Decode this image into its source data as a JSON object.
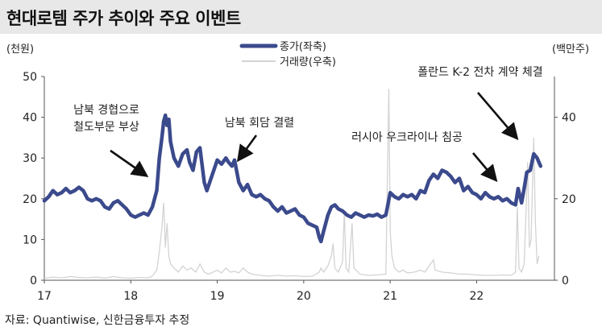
{
  "title": "현대로템 주가 추이와 주요 이벤트",
  "source": "자료: Quantiwise, 신한금융투자 추정",
  "chart_data": {
    "type": "line",
    "x_unit": "year",
    "x_tick_labels": [
      "17",
      "18",
      "19",
      "20",
      "21",
      "22"
    ],
    "xlim": [
      2017.0,
      2022.9
    ],
    "y_left": {
      "label": "(천원)",
      "ylim": [
        0,
        50
      ],
      "ticks": [
        0,
        10,
        20,
        30,
        40,
        50
      ]
    },
    "y_right": {
      "label": "(백만주)",
      "ylim": [
        0,
        50
      ],
      "ticks": [
        0,
        20,
        40
      ]
    },
    "legend": {
      "position": "top-center"
    },
    "grid": false,
    "series": [
      {
        "name": "종가(좌축)",
        "axis": "left",
        "color": "#3b4a8c",
        "points": [
          [
            2017.0,
            19.5
          ],
          [
            2017.05,
            20.5
          ],
          [
            2017.1,
            22.0
          ],
          [
            2017.15,
            21.0
          ],
          [
            2017.2,
            21.5
          ],
          [
            2017.25,
            22.5
          ],
          [
            2017.3,
            21.5
          ],
          [
            2017.35,
            22.0
          ],
          [
            2017.4,
            22.8
          ],
          [
            2017.45,
            22.0
          ],
          [
            2017.5,
            20.0
          ],
          [
            2017.55,
            19.5
          ],
          [
            2017.6,
            20.0
          ],
          [
            2017.65,
            19.5
          ],
          [
            2017.7,
            18.0
          ],
          [
            2017.75,
            17.5
          ],
          [
            2017.8,
            19.0
          ],
          [
            2017.85,
            19.5
          ],
          [
            2017.9,
            18.5
          ],
          [
            2017.95,
            17.5
          ],
          [
            2018.0,
            16.0
          ],
          [
            2018.05,
            15.5
          ],
          [
            2018.1,
            16.0
          ],
          [
            2018.15,
            16.5
          ],
          [
            2018.2,
            16.0
          ],
          [
            2018.25,
            18.0
          ],
          [
            2018.3,
            22.0
          ],
          [
            2018.33,
            30.0
          ],
          [
            2018.36,
            35.0
          ],
          [
            2018.38,
            39.0
          ],
          [
            2018.4,
            40.5
          ],
          [
            2018.42,
            38.0
          ],
          [
            2018.44,
            39.5
          ],
          [
            2018.46,
            34.0
          ],
          [
            2018.5,
            30.0
          ],
          [
            2018.55,
            28.0
          ],
          [
            2018.6,
            31.0
          ],
          [
            2018.65,
            32.0
          ],
          [
            2018.68,
            29.0
          ],
          [
            2018.72,
            27.0
          ],
          [
            2018.76,
            31.5
          ],
          [
            2018.8,
            32.5
          ],
          [
            2018.85,
            24.0
          ],
          [
            2018.88,
            22.0
          ],
          [
            2018.92,
            24.5
          ],
          [
            2018.96,
            27.0
          ],
          [
            2019.0,
            29.5
          ],
          [
            2019.05,
            28.5
          ],
          [
            2019.1,
            30.0
          ],
          [
            2019.13,
            29.0
          ],
          [
            2019.17,
            28.0
          ],
          [
            2019.2,
            29.5
          ],
          [
            2019.25,
            24.0
          ],
          [
            2019.3,
            22.0
          ],
          [
            2019.35,
            23.5
          ],
          [
            2019.4,
            21.0
          ],
          [
            2019.45,
            20.5
          ],
          [
            2019.5,
            21.0
          ],
          [
            2019.55,
            20.0
          ],
          [
            2019.6,
            19.5
          ],
          [
            2019.65,
            18.0
          ],
          [
            2019.7,
            17.0
          ],
          [
            2019.75,
            18.0
          ],
          [
            2019.8,
            16.5
          ],
          [
            2019.85,
            17.0
          ],
          [
            2019.9,
            17.5
          ],
          [
            2019.95,
            16.0
          ],
          [
            2020.0,
            15.5
          ],
          [
            2020.05,
            14.0
          ],
          [
            2020.1,
            13.5
          ],
          [
            2020.15,
            13.0
          ],
          [
            2020.18,
            10.5
          ],
          [
            2020.2,
            9.5
          ],
          [
            2020.23,
            12.0
          ],
          [
            2020.28,
            16.0
          ],
          [
            2020.32,
            18.0
          ],
          [
            2020.36,
            18.5
          ],
          [
            2020.4,
            17.5
          ],
          [
            2020.45,
            17.0
          ],
          [
            2020.5,
            16.0
          ],
          [
            2020.55,
            15.5
          ],
          [
            2020.6,
            16.5
          ],
          [
            2020.65,
            16.0
          ],
          [
            2020.7,
            15.5
          ],
          [
            2020.75,
            16.0
          ],
          [
            2020.8,
            15.8
          ],
          [
            2020.85,
            16.2
          ],
          [
            2020.9,
            15.5
          ],
          [
            2020.95,
            16.0
          ],
          [
            2021.0,
            21.5
          ],
          [
            2021.05,
            20.5
          ],
          [
            2021.1,
            20.0
          ],
          [
            2021.15,
            21.0
          ],
          [
            2021.2,
            20.5
          ],
          [
            2021.25,
            21.0
          ],
          [
            2021.3,
            20.0
          ],
          [
            2021.35,
            22.0
          ],
          [
            2021.4,
            21.5
          ],
          [
            2021.45,
            24.5
          ],
          [
            2021.5,
            26.0
          ],
          [
            2021.55,
            25.0
          ],
          [
            2021.6,
            27.0
          ],
          [
            2021.65,
            26.5
          ],
          [
            2021.7,
            25.5
          ],
          [
            2021.75,
            24.0
          ],
          [
            2021.8,
            25.0
          ],
          [
            2021.85,
            22.0
          ],
          [
            2021.9,
            23.0
          ],
          [
            2021.95,
            21.5
          ],
          [
            2022.0,
            21.0
          ],
          [
            2022.05,
            20.0
          ],
          [
            2022.1,
            21.5
          ],
          [
            2022.15,
            20.5
          ],
          [
            2022.2,
            20.0
          ],
          [
            2022.25,
            20.5
          ],
          [
            2022.3,
            19.5
          ],
          [
            2022.35,
            20.0
          ],
          [
            2022.4,
            19.0
          ],
          [
            2022.45,
            18.5
          ],
          [
            2022.48,
            22.5
          ],
          [
            2022.52,
            19.0
          ],
          [
            2022.55,
            22.5
          ],
          [
            2022.58,
            26.5
          ],
          [
            2022.62,
            27.0
          ],
          [
            2022.66,
            31.0
          ],
          [
            2022.7,
            30.0
          ],
          [
            2022.74,
            28.0
          ]
        ]
      },
      {
        "name": "거래량(우축)",
        "axis": "right",
        "color": "#d3d3d3",
        "points": [
          [
            2017.0,
            0.5
          ],
          [
            2017.1,
            0.8
          ],
          [
            2017.2,
            0.6
          ],
          [
            2017.3,
            0.9
          ],
          [
            2017.4,
            0.7
          ],
          [
            2017.5,
            0.6
          ],
          [
            2017.6,
            0.8
          ],
          [
            2017.7,
            0.5
          ],
          [
            2017.8,
            0.9
          ],
          [
            2017.9,
            0.6
          ],
          [
            2018.0,
            0.5
          ],
          [
            2018.1,
            0.7
          ],
          [
            2018.2,
            0.6
          ],
          [
            2018.25,
            1.0
          ],
          [
            2018.3,
            2.5
          ],
          [
            2018.33,
            7.0
          ],
          [
            2018.36,
            13.0
          ],
          [
            2018.38,
            19.0
          ],
          [
            2018.4,
            8.0
          ],
          [
            2018.42,
            14.0
          ],
          [
            2018.44,
            6.0
          ],
          [
            2018.46,
            4.0
          ],
          [
            2018.5,
            3.0
          ],
          [
            2018.55,
            2.0
          ],
          [
            2018.6,
            3.5
          ],
          [
            2018.65,
            2.5
          ],
          [
            2018.7,
            3.0
          ],
          [
            2018.75,
            2.0
          ],
          [
            2018.8,
            4.0
          ],
          [
            2018.85,
            2.0
          ],
          [
            2018.9,
            1.5
          ],
          [
            2018.95,
            2.0
          ],
          [
            2019.0,
            2.5
          ],
          [
            2019.05,
            1.8
          ],
          [
            2019.1,
            3.0
          ],
          [
            2019.15,
            2.0
          ],
          [
            2019.2,
            2.2
          ],
          [
            2019.25,
            1.8
          ],
          [
            2019.3,
            3.0
          ],
          [
            2019.35,
            2.0
          ],
          [
            2019.4,
            1.5
          ],
          [
            2019.5,
            1.2
          ],
          [
            2019.6,
            1.0
          ],
          [
            2019.7,
            1.2
          ],
          [
            2019.8,
            1.0
          ],
          [
            2019.9,
            1.1
          ],
          [
            2020.0,
            0.9
          ],
          [
            2020.1,
            1.0
          ],
          [
            2020.18,
            2.0
          ],
          [
            2020.2,
            3.0
          ],
          [
            2020.23,
            2.0
          ],
          [
            2020.28,
            3.5
          ],
          [
            2020.32,
            6.0
          ],
          [
            2020.34,
            9.0
          ],
          [
            2020.36,
            3.0
          ],
          [
            2020.4,
            2.0
          ],
          [
            2020.45,
            4.5
          ],
          [
            2020.47,
            17.0
          ],
          [
            2020.49,
            3.0
          ],
          [
            2020.52,
            2.0
          ],
          [
            2020.56,
            14.0
          ],
          [
            2020.58,
            3.0
          ],
          [
            2020.65,
            1.5
          ],
          [
            2020.75,
            1.2
          ],
          [
            2020.85,
            1.3
          ],
          [
            2020.95,
            1.5
          ],
          [
            2020.985,
            47.0
          ],
          [
            2021.0,
            12.0
          ],
          [
            2021.02,
            6.0
          ],
          [
            2021.05,
            3.0
          ],
          [
            2021.1,
            2.0
          ],
          [
            2021.15,
            2.5
          ],
          [
            2021.2,
            1.8
          ],
          [
            2021.28,
            2.0
          ],
          [
            2021.35,
            2.5
          ],
          [
            2021.4,
            2.0
          ],
          [
            2021.45,
            3.5
          ],
          [
            2021.5,
            5.0
          ],
          [
            2021.52,
            2.5
          ],
          [
            2021.6,
            2.0
          ],
          [
            2021.7,
            1.8
          ],
          [
            2021.8,
            1.5
          ],
          [
            2021.9,
            1.5
          ],
          [
            2022.0,
            1.3
          ],
          [
            2022.1,
            1.2
          ],
          [
            2022.2,
            1.2
          ],
          [
            2022.3,
            1.3
          ],
          [
            2022.4,
            1.2
          ],
          [
            2022.45,
            2.0
          ],
          [
            2022.47,
            18.0
          ],
          [
            2022.49,
            3.0
          ],
          [
            2022.52,
            2.0
          ],
          [
            2022.55,
            4.0
          ],
          [
            2022.57,
            16.0
          ],
          [
            2022.59,
            29.0
          ],
          [
            2022.61,
            8.0
          ],
          [
            2022.63,
            10.0
          ],
          [
            2022.66,
            35.0
          ],
          [
            2022.68,
            14.0
          ],
          [
            2022.7,
            4.0
          ],
          [
            2022.72,
            6.0
          ]
        ]
      }
    ],
    "annotations": [
      {
        "text_lines": [
          "남북 경협으로",
          "철도부문 부상"
        ]
      },
      {
        "text_lines": [
          "남북 회담 결렬"
        ]
      },
      {
        "text_lines": [
          "러시아 우크라이나 침공"
        ]
      },
      {
        "text_lines": [
          "폴란드 K-2 전차 계약 체결"
        ]
      }
    ]
  }
}
